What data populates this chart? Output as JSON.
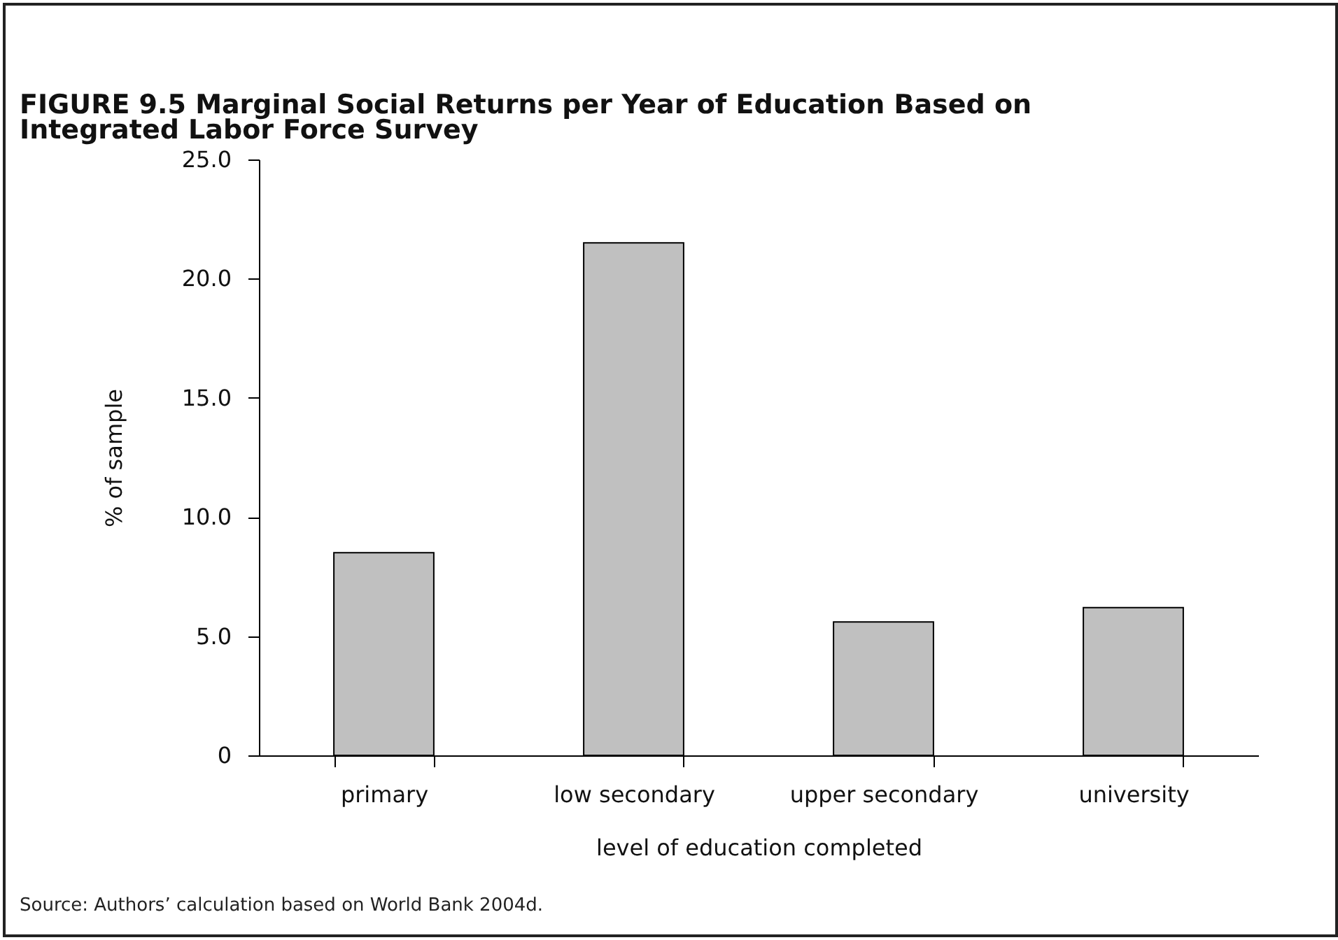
{
  "chart_data": {
    "type": "bar",
    "title": "FIGURE 9.5 Marginal Social Returns per Year of Education Based on Integrated Labor Force Survey",
    "xlabel": "level of education completed",
    "ylabel": "% of sample",
    "categories": [
      "primary",
      "low secondary",
      "upper secondary",
      "university"
    ],
    "values": [
      8.5,
      21.5,
      5.6,
      6.2
    ],
    "color": "#c0c0c0",
    "ylim": [
      0,
      25
    ],
    "yticks": [
      0,
      {
        "value": 5,
        "label": "5.0"
      },
      {
        "value": 10,
        "label": "10.0"
      },
      {
        "value": 15,
        "label": "15.0"
      },
      {
        "value": 20,
        "label": "20.0"
      },
      {
        "value": 25,
        "label": "25.0"
      }
    ],
    "grid": false,
    "annotations": [
      "Source: Authors’ calculation based on World Bank 2004d."
    ]
  }
}
